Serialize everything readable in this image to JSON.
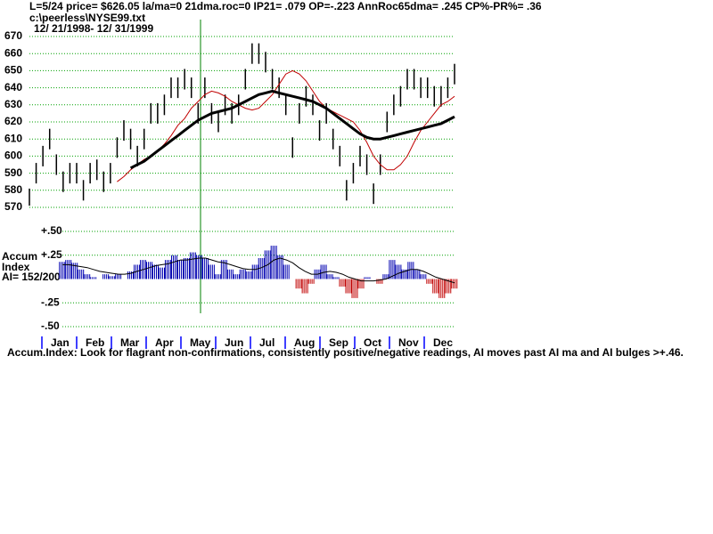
{
  "header": {
    "status": "L=5/24  price= $626.05  la/ma=0 21dma.roc=0 IP21= .079 OP=-.223 AnnRoc65dma= .245 CP%-PR%=  .36",
    "file": "c:\\peerless\\NYSE99.txt",
    "dates": "12/ 21/1998- 12/ 31/1999"
  },
  "chart_data": [
    {
      "type": "hilo",
      "color": "#000000",
      "ylim": [
        570,
        670
      ],
      "yticks": [
        570,
        580,
        590,
        600,
        610,
        620,
        630,
        640,
        650,
        660,
        670
      ],
      "grid": true,
      "grid_color": "#00a000",
      "high": [
        581,
        596,
        606,
        616,
        601,
        591,
        596,
        596,
        586,
        596,
        598,
        591,
        596,
        611,
        621,
        616,
        606,
        616,
        631,
        631,
        636,
        646,
        646,
        651,
        646,
        631,
        646,
        631,
        626,
        636,
        631,
        636,
        651,
        666,
        666,
        661,
        651,
        646,
        636,
        611,
        631,
        641,
        636,
        621,
        631,
        616,
        606,
        586,
        596,
        606,
        601,
        584,
        601,
        626,
        636,
        641,
        651,
        651,
        646,
        646,
        641,
        641,
        646,
        654
      ],
      "low": [
        571,
        584,
        594,
        604,
        589,
        579,
        584,
        584,
        574,
        584,
        586,
        579,
        584,
        599,
        609,
        604,
        594,
        604,
        619,
        619,
        624,
        634,
        634,
        639,
        634,
        619,
        634,
        619,
        614,
        624,
        619,
        624,
        639,
        654,
        654,
        649,
        639,
        634,
        624,
        599,
        619,
        629,
        624,
        609,
        619,
        604,
        594,
        574,
        584,
        594,
        589,
        572,
        589,
        614,
        624,
        629,
        639,
        639,
        634,
        634,
        629,
        629,
        634,
        642
      ],
      "lines": [
        {
          "color": "#c00000",
          "bold": false,
          "values": [
            null,
            null,
            null,
            null,
            null,
            null,
            null,
            null,
            null,
            null,
            null,
            null,
            null,
            585,
            588,
            592,
            595,
            598,
            600,
            603,
            607,
            612,
            618,
            622,
            628,
            632,
            636,
            638,
            637,
            635,
            632,
            630,
            628,
            627,
            628,
            632,
            636,
            642,
            648,
            650,
            648,
            644,
            638,
            632,
            628,
            626,
            624,
            622,
            620,
            615,
            608,
            600,
            595,
            592,
            592,
            595,
            600,
            608,
            615,
            620,
            625,
            630,
            632,
            635
          ]
        },
        {
          "color": "#000000",
          "bold": true,
          "values": [
            null,
            null,
            null,
            null,
            null,
            null,
            null,
            null,
            null,
            null,
            null,
            null,
            null,
            null,
            null,
            593,
            595,
            597,
            600,
            603,
            606,
            609,
            612,
            615,
            618,
            621,
            623,
            625,
            626,
            627,
            628,
            630,
            632,
            634,
            636,
            637,
            638,
            637,
            636,
            635,
            634,
            633,
            632,
            630,
            628,
            625,
            622,
            619,
            616,
            613,
            611,
            610,
            610,
            611,
            612,
            613,
            614,
            615,
            616,
            617,
            618,
            619,
            621,
            623
          ]
        }
      ]
    },
    {
      "type": "histogram",
      "title": "Accum\nIndex",
      "label": "AI= 152/200",
      "positive_color": "#0000b0",
      "negative_color": "#c00000",
      "ylim": [
        -0.5,
        0.5
      ],
      "yticks": [
        {
          "value": 0.5,
          "label": "+.50"
        },
        {
          "value": 0.25,
          "label": "+.25"
        },
        {
          "value": -0.25,
          "label": "-.25"
        },
        {
          "value": -0.5,
          "label": "-.50"
        }
      ],
      "grid": true,
      "grid_color": "#00a000",
      "values": [
        0.18,
        0.2,
        0.17,
        0.1,
        0.05,
        0.02,
        0.0,
        0.05,
        0.03,
        0.05,
        0.0,
        0.08,
        0.15,
        0.2,
        0.18,
        0.15,
        0.12,
        0.2,
        0.25,
        0.2,
        0.22,
        0.28,
        0.25,
        0.22,
        0.15,
        0.05,
        0.2,
        0.1,
        0.05,
        0.1,
        0.08,
        0.15,
        0.22,
        0.3,
        0.35,
        0.25,
        0.15,
        0.0,
        -0.1,
        -0.15,
        -0.05,
        0.1,
        0.15,
        0.05,
        0.02,
        -0.08,
        -0.15,
        -0.2,
        -0.1,
        0.02,
        0.0,
        -0.05,
        0.05,
        0.2,
        0.15,
        0.1,
        0.18,
        0.1,
        0.05,
        -0.05,
        -0.15,
        -0.2,
        -0.15,
        -0.1
      ],
      "ma": {
        "color": "#000000",
        "values": [
          0.15,
          0.15,
          0.14,
          0.13,
          0.12,
          0.1,
          0.08,
          0.07,
          0.06,
          0.05,
          0.05,
          0.06,
          0.08,
          0.1,
          0.12,
          0.14,
          0.15,
          0.16,
          0.18,
          0.2,
          0.2,
          0.21,
          0.22,
          0.22,
          0.2,
          0.18,
          0.17,
          0.15,
          0.13,
          0.11,
          0.1,
          0.1,
          0.12,
          0.15,
          0.2,
          0.22,
          0.2,
          0.17,
          0.12,
          0.08,
          0.05,
          0.05,
          0.07,
          0.08,
          0.07,
          0.05,
          0.02,
          0.0,
          -0.02,
          -0.02,
          -0.02,
          -0.01,
          0.0,
          0.03,
          0.06,
          0.08,
          0.1,
          0.1,
          0.08,
          0.05,
          0.02,
          0.0,
          -0.02,
          -0.04
        ]
      },
      "categories": [
        "Jan",
        "Feb",
        "Mar",
        "Apr",
        "May",
        "Jun",
        "Jul",
        "Aug",
        "Sep",
        "Oct",
        "Nov",
        "Dec"
      ],
      "tick_color": "#0000ff",
      "note": "Accum.Index: Look for flagrant non-confirmations, consistently positive/negative readings, AI moves past AI ma and AI bulges >+.46."
    }
  ]
}
